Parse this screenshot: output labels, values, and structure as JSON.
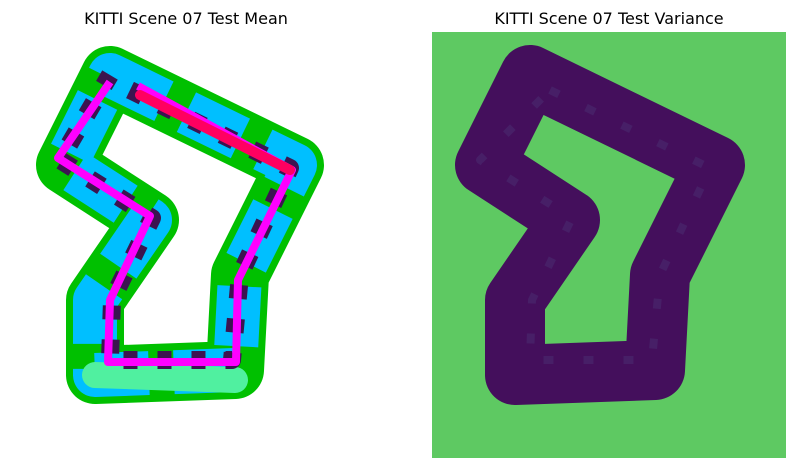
{
  "panels": [
    {
      "title": "KITTI Scene 07 Test Mean"
    },
    {
      "title": "KITTI Scene 07 Test Variance"
    }
  ]
}
